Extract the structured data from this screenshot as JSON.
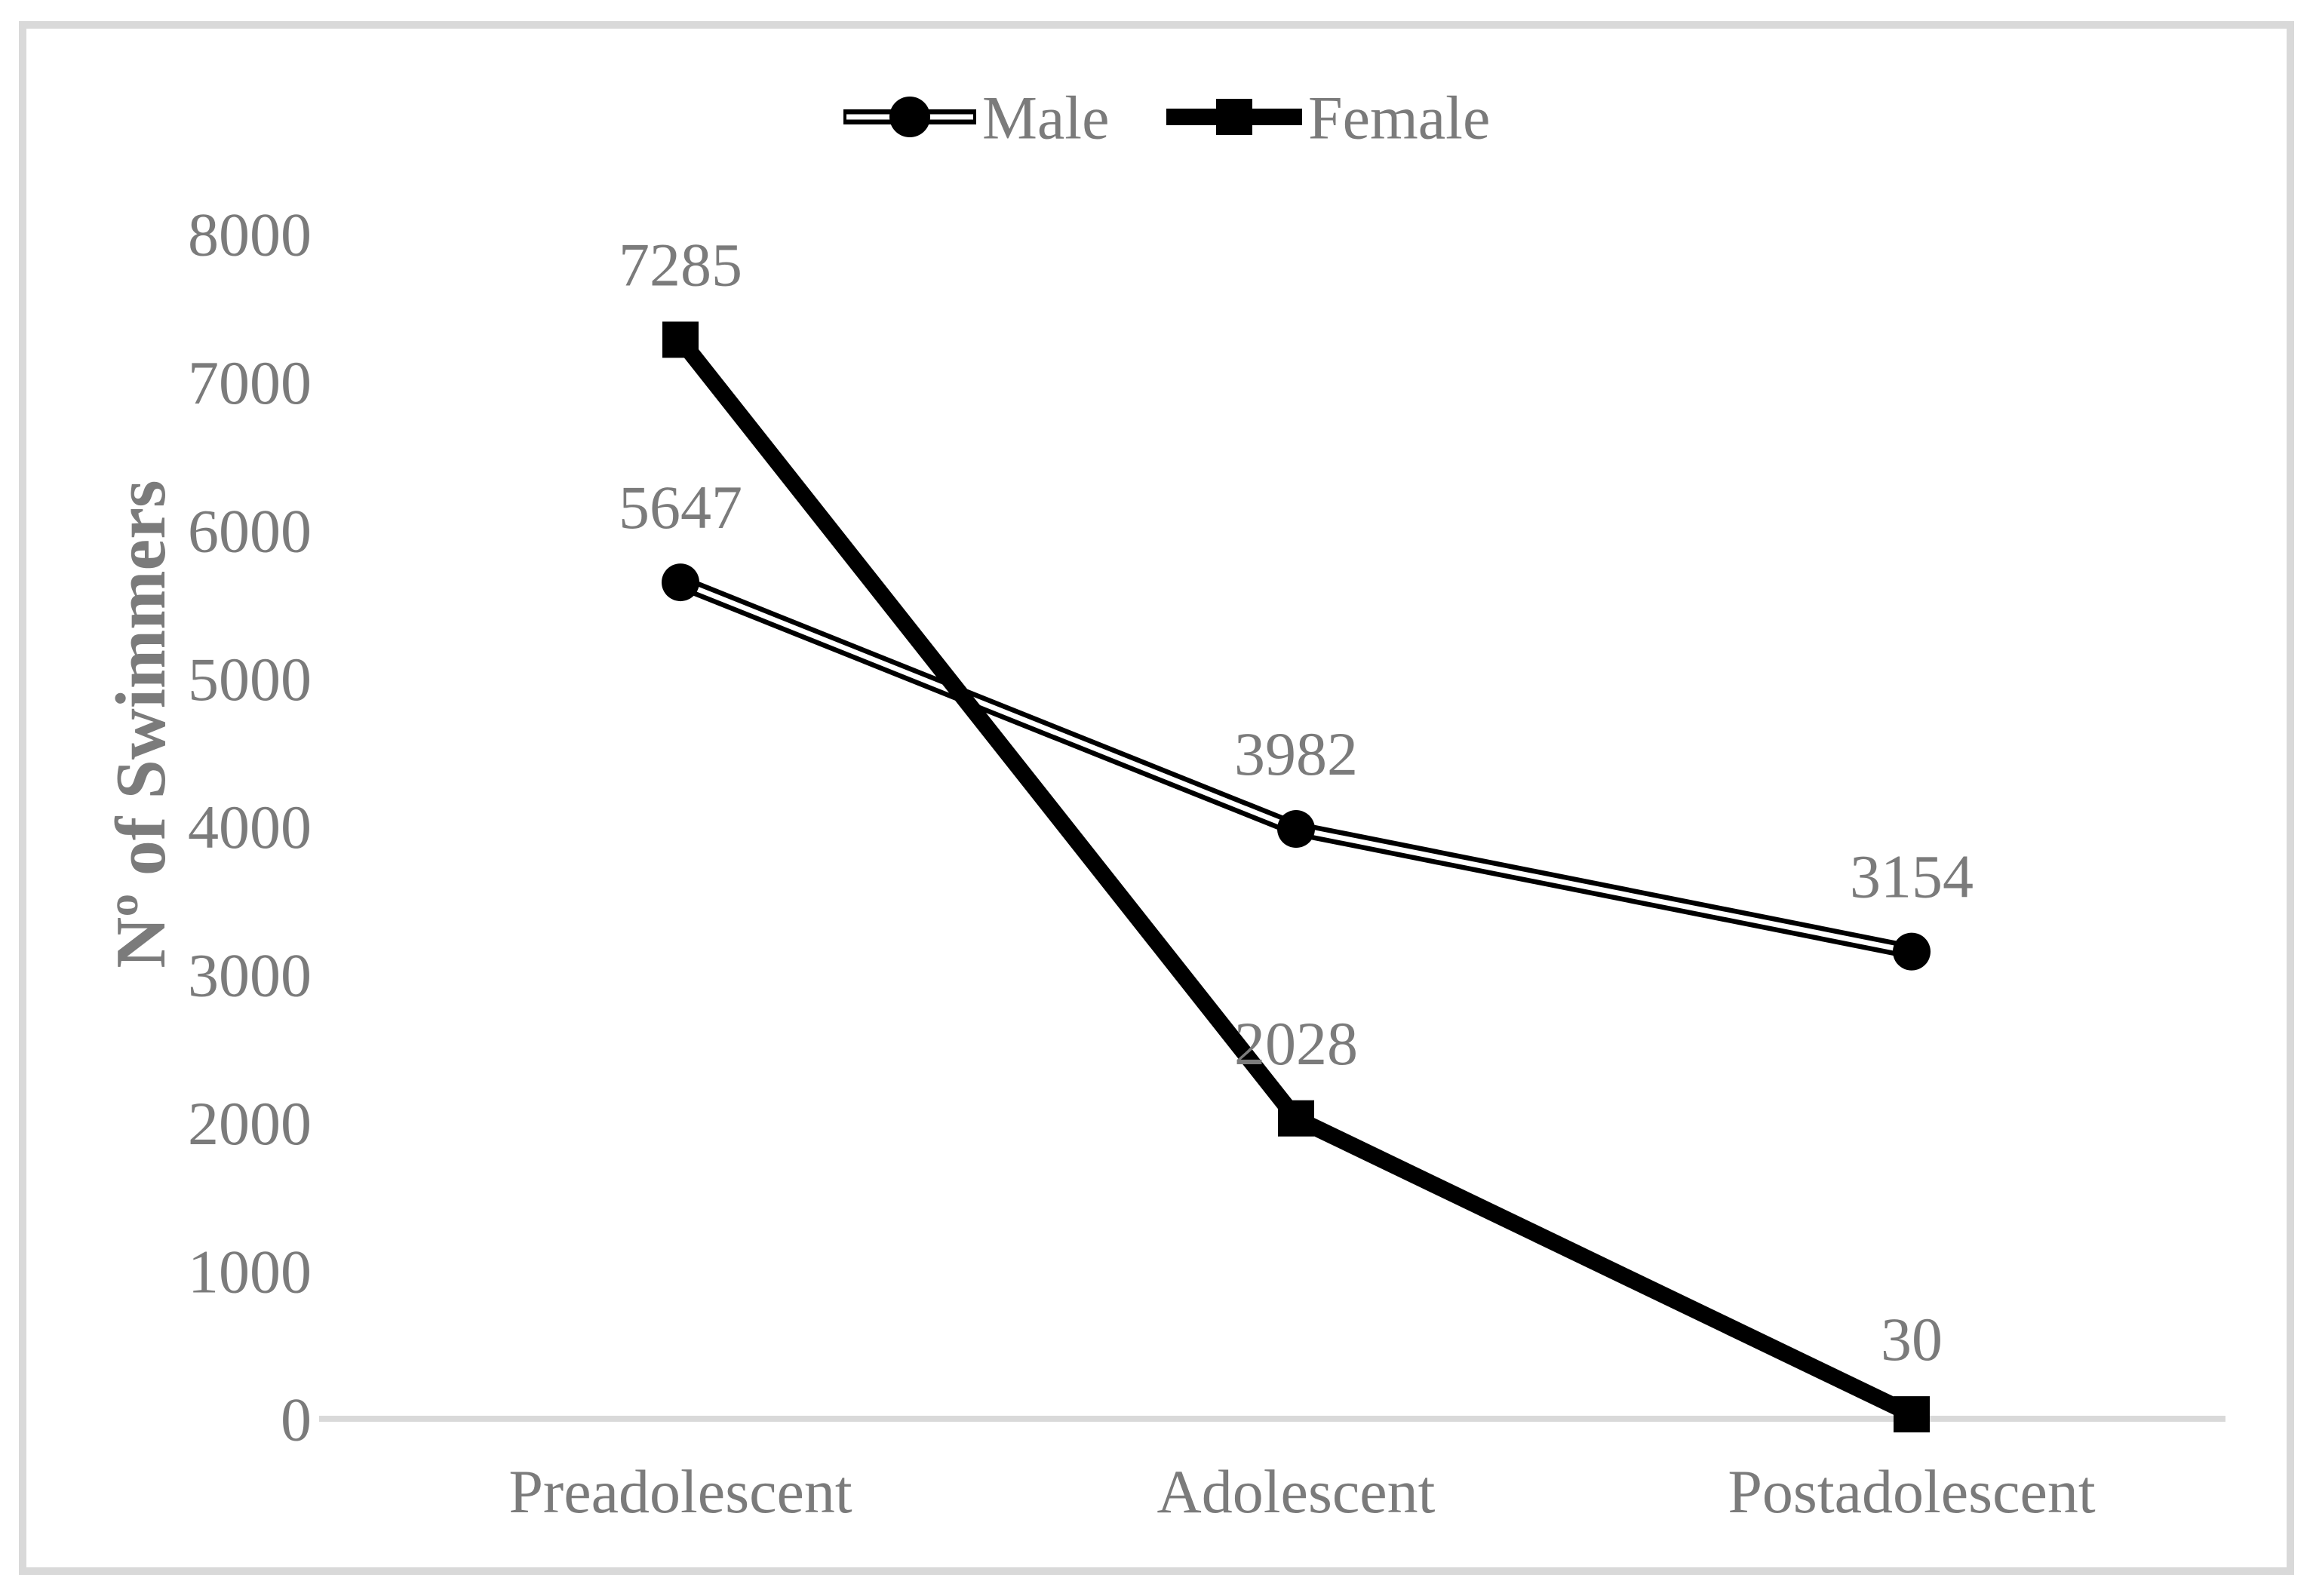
{
  "chart_data": {
    "type": "line",
    "title": "",
    "categories": [
      "Preadolescent",
      "Adolescent",
      "Postadolescent"
    ],
    "series": [
      {
        "name": "Male",
        "marker": "circle",
        "line_style": "double-stripe",
        "values": [
          5647,
          3982,
          3154
        ]
      },
      {
        "name": "Female",
        "marker": "square",
        "line_style": "solid-thick",
        "values": [
          7285,
          2028,
          30
        ]
      }
    ],
    "xlabel": "",
    "ylabel": "Nº of Swimmers",
    "ylim": [
      0,
      8000
    ],
    "yticks": [
      0,
      1000,
      2000,
      3000,
      4000,
      5000,
      6000,
      7000,
      8000
    ],
    "legend_position": "top-center",
    "grid": false,
    "data_labels": true
  },
  "legend": {
    "items": [
      {
        "label": "Male"
      },
      {
        "label": "Female"
      }
    ]
  },
  "colors": {
    "text": "#7b7b7b",
    "axis_line": "#d9d9d9",
    "frame_border": "#d9d9d9",
    "series": "#000000",
    "background": "#ffffff"
  }
}
